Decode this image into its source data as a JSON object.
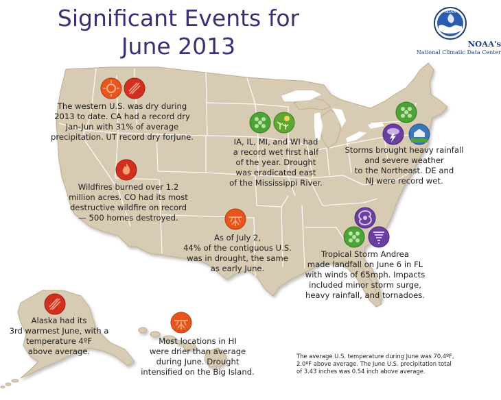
{
  "title": {
    "line1": "Significant Events for",
    "line2": "June 2013"
  },
  "logo": {
    "badge_text": "NOAA",
    "name": "NOAA's",
    "subtitle": "National Climatic Data Center"
  },
  "events": {
    "west": [
      "The western U.S. was dry during",
      "2013 to date. CA had a record dry",
      "Jan-Jun with 31% of average",
      "precipitation. UT record dry forJune."
    ],
    "wildfires": [
      "Wildfires burned over 1.2",
      "million acres. CO had its most",
      "destructive wildfire on record",
      "— 500 homes destroyed."
    ],
    "midwest": [
      "IA, IL, MI, and WI had",
      "a record wet first half",
      "of the year. Drought",
      "was eradicated east",
      "of the Mississippi River."
    ],
    "northeast": [
      "Storms brought heavy rainfall",
      "and severe weather",
      "to the Northeast. DE and",
      "NJ were record wet."
    ],
    "drought": [
      "As of July 2,",
      "44% of the contiguous U.S.",
      "was in drought, the same",
      "as early June."
    ],
    "andrea": [
      "Tropical Storm Andrea",
      "made landfall on June 6 in FL",
      "with winds of 65mph. Impacts",
      "included minor storm surge,",
      "heavy rainfall, and tornadoes."
    ],
    "alaska": [
      "Alaska had its",
      "3rd warmest June, with a",
      "temperature 4ºF",
      "above average."
    ],
    "hawaii": [
      "Most locations in HI",
      "were drier than average",
      "during June. Drought",
      "intensified on the Big Island."
    ]
  },
  "footnote": [
    "The average U.S. temperature during June was 70.4ºF,",
    "2.0ºF above average. The June U.S. precipitation total",
    "of 3.43 inches was 0.54 inch above average."
  ],
  "icon_legend": {
    "orange": "dry / warm / drought",
    "red": "warm / fire",
    "green": "wet",
    "purple": "storm"
  },
  "colors": {
    "title": "#3b2f73",
    "land": "#d8cbb4",
    "land_edge": "#bfae90",
    "state_lines": "#ffffff",
    "orange_icon": "#e8551c",
    "red_icon": "#d2301e",
    "green_icon": "#4ea336",
    "purple_icon": "#6b3fa0"
  }
}
